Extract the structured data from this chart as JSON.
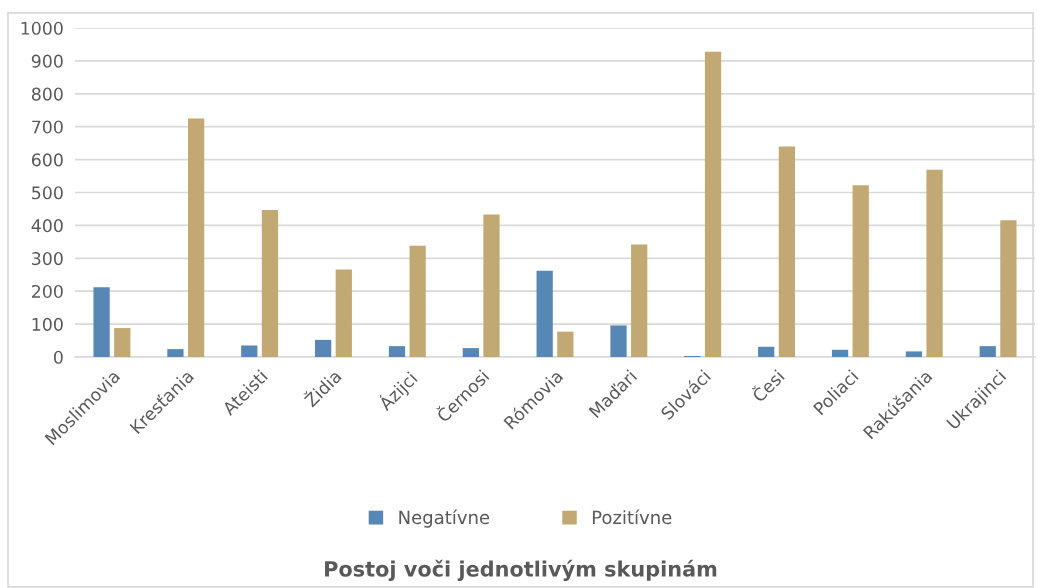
{
  "chart_data": {
    "type": "bar",
    "title": "Postoj voči jednotlivým skupinám",
    "categories": [
      "Moslimovia",
      "Kresťania",
      "Ateisti",
      "Židia",
      "Ázijci",
      "Černosi",
      "Rómovia",
      "Maďari",
      "Slováci",
      "Česi",
      "Poliaci",
      "Rakúšania",
      "Ukrajinci"
    ],
    "series": [
      {
        "name": "Negatívne",
        "color": "#5787b4",
        "values": [
          212,
          24,
          35,
          52,
          33,
          27,
          262,
          96,
          3,
          31,
          22,
          17,
          33
        ]
      },
      {
        "name": "Pozitívne",
        "color": "#c2a872",
        "values": [
          88,
          725,
          447,
          266,
          338,
          433,
          77,
          342,
          928,
          640,
          522,
          569,
          416
        ]
      }
    ],
    "ylim": [
      0,
      1000
    ],
    "yticks": [
      0,
      100,
      200,
      300,
      400,
      500,
      600,
      700,
      800,
      900,
      1000
    ],
    "grid": "y",
    "legend": "bottom"
  }
}
